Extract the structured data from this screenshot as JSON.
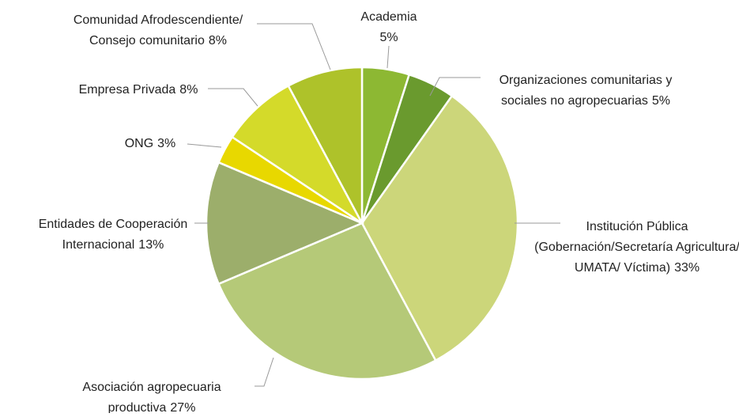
{
  "chart_data": {
    "type": "pie",
    "categories": [
      [
        "Academia"
      ],
      [
        "Organizaciones comunitarias y",
        "sociales no agropecuarias"
      ],
      [
        "Institución Pública",
        "(Gobernación/Secretaría Agricultura/",
        "UMATA/ Víctima)"
      ],
      [
        "Asociación agropecuaria",
        "productiva"
      ],
      [
        "Entidades de Cooperación",
        "Internacional"
      ],
      [
        "ONG"
      ],
      [
        "Empresa Privada"
      ],
      [
        "Comunidad Afrodescendiente/",
        "Consejo comunitario"
      ]
    ],
    "values": [
      5,
      5,
      33,
      27,
      13,
      3,
      8,
      8
    ],
    "value_labels": [
      "5%",
      "5%",
      "33%",
      "27%",
      "13%",
      "3%",
      "8%",
      "8%"
    ],
    "colors": [
      "#8db833",
      "#6a9a2e",
      "#ccd67a",
      "#b5c978",
      "#9cae6b",
      "#e8d800",
      "#d4da2a",
      "#aec22a"
    ]
  }
}
